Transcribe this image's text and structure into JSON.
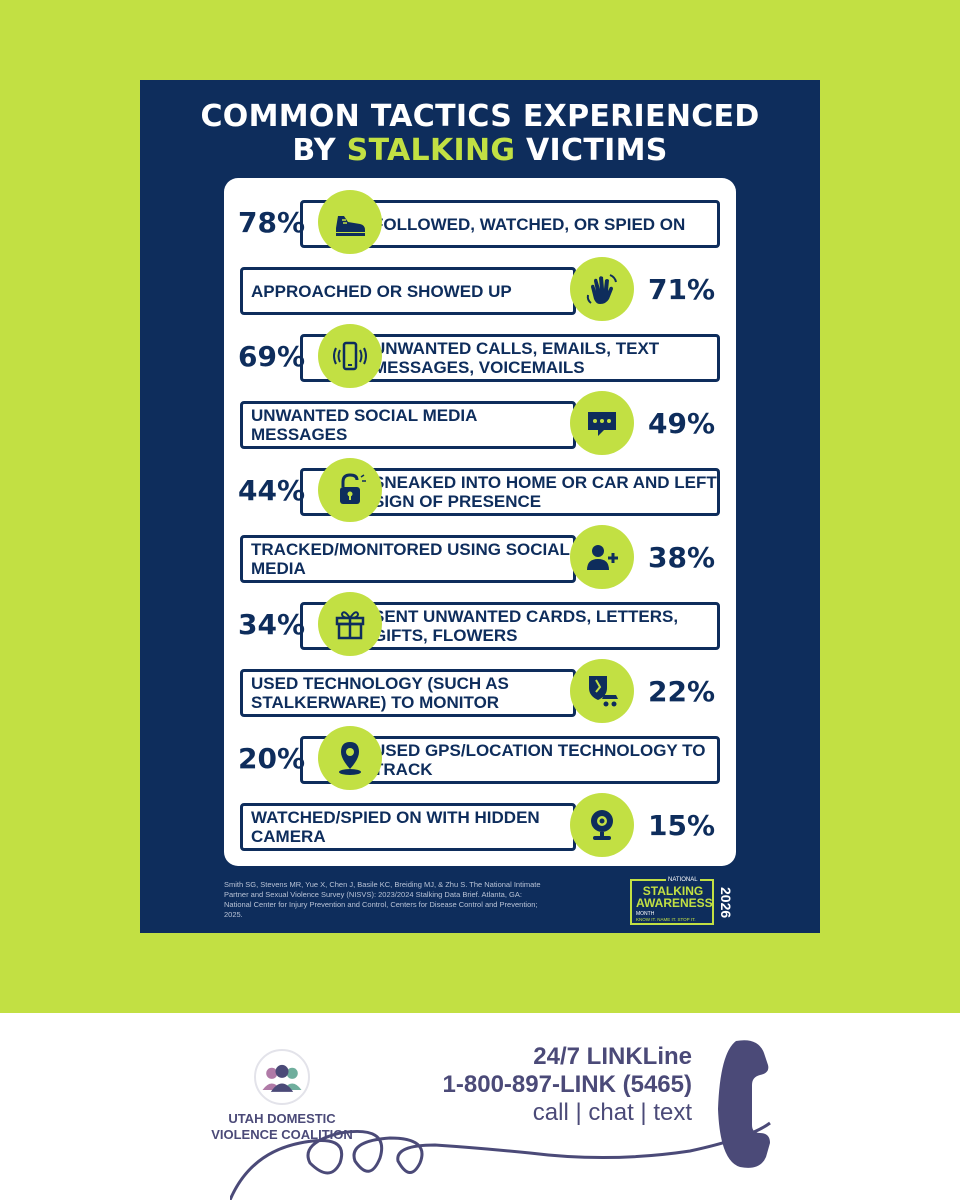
{
  "poster": {
    "title_line1": "COMMON TACTICS EXPERIENCED",
    "title_line2_pre": "BY ",
    "title_line2_highlight": "STALKING",
    "title_line2_post": " VICTIMS",
    "items": [
      {
        "percent": "78%",
        "label": "FOLLOWED, WATCHED, OR SPIED ON",
        "icon": "shoe-icon"
      },
      {
        "percent": "71%",
        "label": "APPROACHED OR SHOWED UP",
        "icon": "waving-hand-icon"
      },
      {
        "percent": "69%",
        "label": "UNWANTED CALLS, EMAILS, TEXT MESSAGES, VOICEMAILS",
        "icon": "ringing-phone-icon"
      },
      {
        "percent": "49%",
        "label": "UNWANTED SOCIAL MEDIA MESSAGES",
        "icon": "chat-bubble-icon"
      },
      {
        "percent": "44%",
        "label": "SNEAKED INTO HOME OR CAR AND LEFT SIGN OF PRESENCE",
        "icon": "padlock-icon"
      },
      {
        "percent": "38%",
        "label": "TRACKED/MONITORED USING SOCIAL MEDIA",
        "icon": "add-user-icon"
      },
      {
        "percent": "34%",
        "label": "SENT UNWANTED CARDS, LETTERS, GIFTS, FLOWERS",
        "icon": "gift-icon"
      },
      {
        "percent": "22%",
        "label": "USED TECHNOLOGY (SUCH AS STALKERWARE) TO MONITOR",
        "icon": "spy-shield-icon"
      },
      {
        "percent": "20%",
        "label": "USED GPS/LOCATION TECHNOLOGY TO TRACK",
        "icon": "location-pin-icon"
      },
      {
        "percent": "15%",
        "label": "WATCHED/SPIED ON WITH HIDDEN CAMERA",
        "icon": "webcam-icon"
      }
    ],
    "source": "Smith SG, Stevens MR, Yue X, Chen J, Basile KC, Breiding MJ, & Zhu S. The National Intimate Partner and Sexual Violence Survey (NISVS): 2023/2024 Stalking Data Brief. Atlanta, GA: National Center for Injury Prevention and Control, Centers for Disease Control and Prevention; 2025.",
    "badge": {
      "national": "NATIONAL",
      "stalking": "STALKING",
      "awareness": "AWARENESS",
      "month": "MONTH",
      "tagline": "KNOW IT. NAME IT. STOP IT.",
      "year": "2026"
    }
  },
  "footer": {
    "org_name": "UTAH DOMESTIC VIOLENCE COALITION",
    "line_title": "24/7 LINKLine",
    "phone": "1-800-897-LINK (5465)",
    "contact": "call | chat | text"
  },
  "colors": {
    "background": "#c2e043",
    "navy": "#0e2d5c",
    "accent": "#c2e043",
    "footer_text": "#4b4a78"
  }
}
